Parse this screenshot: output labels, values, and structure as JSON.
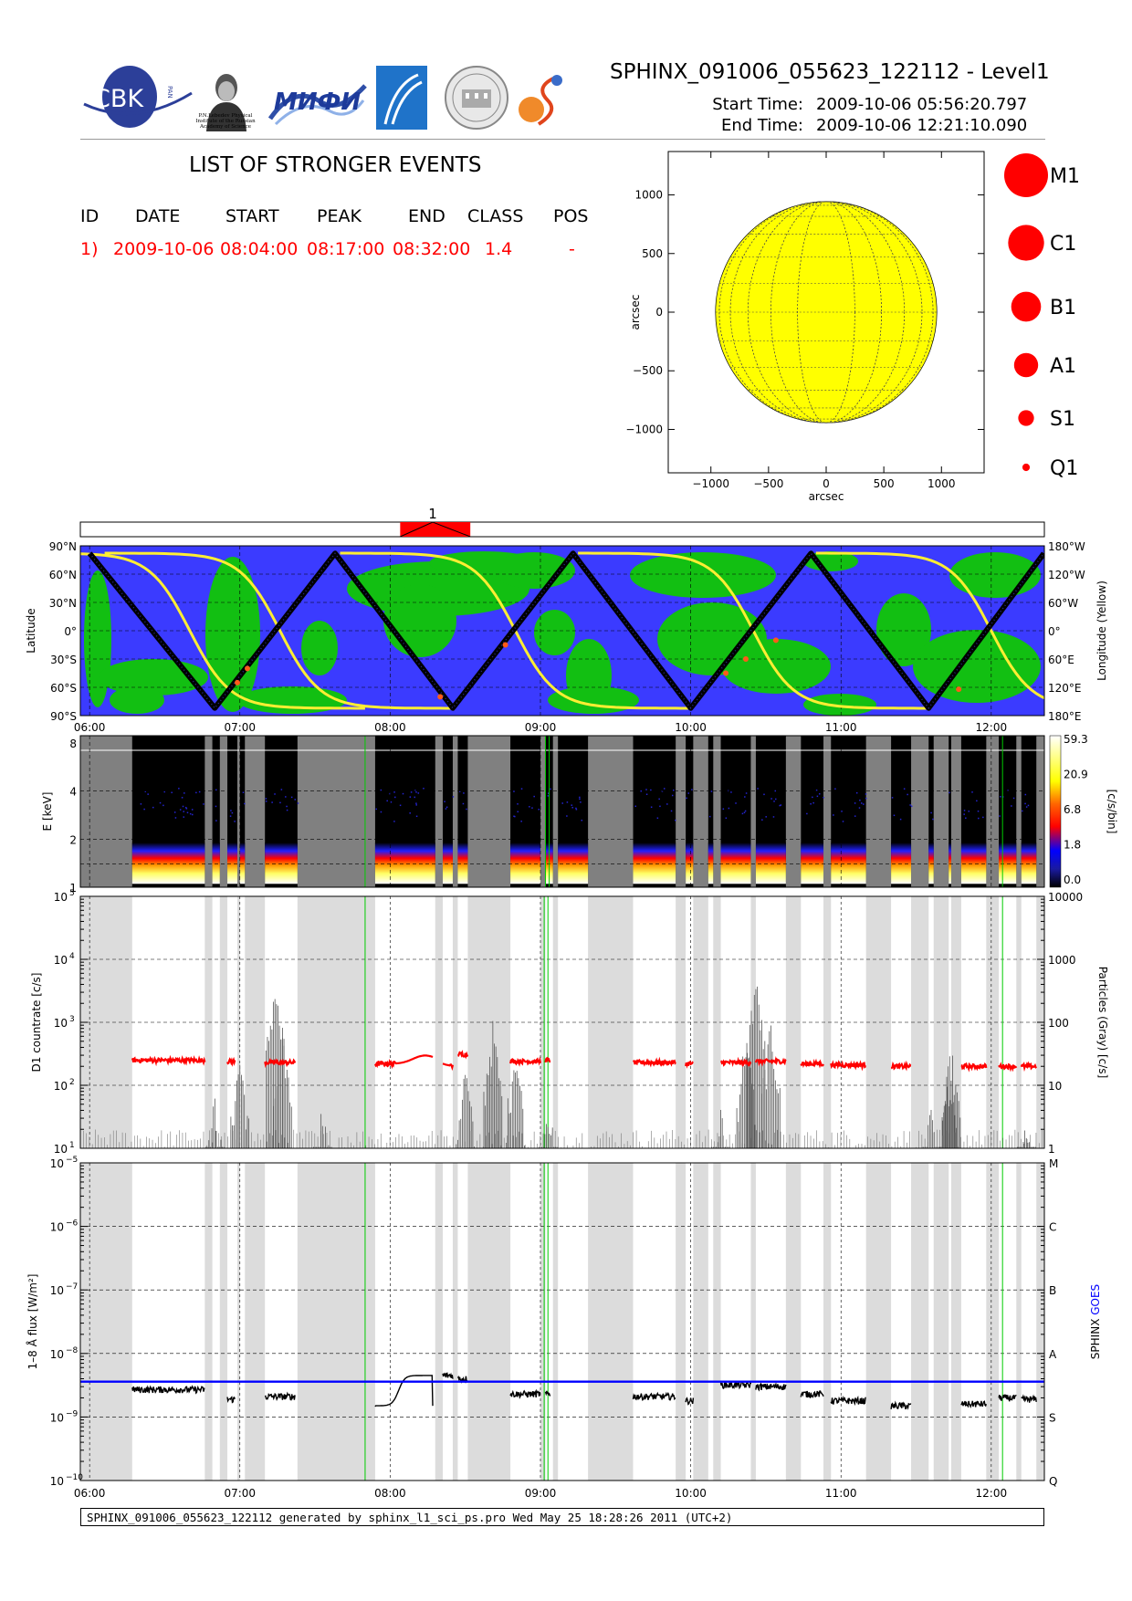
{
  "header": {
    "title": "SPHINX_091006_055623_122112 - Level1",
    "start_label": "Start Time:",
    "start_value": "2009-10-06   05:56:20.797",
    "end_label": "End Time:",
    "end_value": "2009-10-06   12:21:10.090"
  },
  "logos": {
    "cbk": "CBK",
    "cbk_small": "PAN",
    "lebedev": "P.N.Lebedev Physical Institute of the Russian Academy of Science",
    "mifi": "МИФИ"
  },
  "events": {
    "title": "LIST OF STRONGER EVENTS",
    "columns": [
      "ID",
      "DATE",
      "START",
      "PEAK",
      "END",
      "CLASS",
      "POS"
    ],
    "rows": [
      [
        "1)",
        "2009-10-06",
        "08:04:00",
        "08:17:00",
        "08:32:00",
        "1.4",
        "-"
      ]
    ],
    "marker_label": "1"
  },
  "colors": {
    "event_red": "#ff0000",
    "sun_yellow": "#ffff00",
    "map_blue": "#3b3bff",
    "map_green": "#12bf12",
    "track_yellow": "#ffee33",
    "goes_blue": "#0000ff",
    "gray_band": "#dcdcdc",
    "spectro_gray": "#808080"
  },
  "chart_data": [
    {
      "type": "scatter",
      "name": "solar-disk",
      "xlabel": "arcsec",
      "ylabel": "arcsec",
      "xlim": [
        -1370,
        1370
      ],
      "ylim": [
        -1370,
        1370
      ],
      "xticks": [
        "−1000",
        "−500",
        "0",
        "500",
        "1000"
      ],
      "xtick_values": [
        -1000,
        -500,
        0,
        500,
        1000
      ],
      "yticks": [
        "−1000",
        "−500",
        "0",
        "500",
        "1000"
      ],
      "ytick_values": [
        -1000,
        -500,
        0,
        500,
        1000
      ],
      "disk_radius": 960,
      "legend": [
        "M1",
        "C1",
        "B1",
        "A1",
        "S1",
        "Q1"
      ],
      "legend_sizes": [
        1.0,
        0.82,
        0.68,
        0.55,
        0.36,
        0.17
      ]
    },
    {
      "type": "line",
      "name": "orbit-map",
      "time_range": [
        "05:56",
        "12:21"
      ],
      "xticks": [
        "06:00",
        "07:00",
        "08:00",
        "09:00",
        "10:00",
        "11:00",
        "12:00"
      ],
      "left_ticks": [
        "90°N",
        "60°N",
        "30°N",
        "0°",
        "30°S",
        "60°S",
        "90°S"
      ],
      "right_ticks": [
        "180°W",
        "120°W",
        "60°W",
        "0°",
        "60°E",
        "120°E",
        "180°E"
      ],
      "ylabel_left": "Latitude",
      "ylabel_right": "Longitude (Yellow)",
      "latitude_track_peaks": [
        "06:00",
        "07:38",
        "09:13",
        "10:48",
        "12:21"
      ],
      "latitude_track_troughs": [
        "06:50",
        "08:25",
        "10:00",
        "11:35"
      ]
    },
    {
      "type": "heatmap",
      "name": "spectrogram",
      "ylabel": "E [keV]",
      "yticks": [
        "1",
        "2",
        "4",
        "8"
      ],
      "colorbar_label": "[c/s/bin]",
      "colorbar_ticks": [
        "59.3",
        "20.9",
        "6.8",
        "1.8",
        "0.0"
      ]
    },
    {
      "type": "line",
      "name": "d1-countrate",
      "ylabel": "D1 countrate [c/s]",
      "ylabel_right": "Particles (Gray) [c/s]",
      "yscale": "log",
      "ylim": [
        10,
        100000
      ],
      "yticks": [
        "10",
        "10",
        "10",
        "10",
        "10"
      ],
      "ytick_exps": [
        "1",
        "2",
        "3",
        "4",
        "5"
      ],
      "right_ticks": [
        "1",
        "10",
        "100",
        "1000",
        "10000"
      ],
      "countrate_level": [
        250,
        240,
        230,
        220,
        200,
        310,
        240,
        250,
        230,
        220,
        230,
        240,
        220,
        210,
        200,
        200
      ]
    },
    {
      "type": "line",
      "name": "flux",
      "ylabel": "1–8 Å flux [W/m²]",
      "ylabel_right": "SPHINX GOES",
      "yscale": "log",
      "ylim": [
        1e-10,
        1e-05
      ],
      "ytick_exps": [
        "−10",
        "−9",
        "−8",
        "−7",
        "−6",
        "−5"
      ],
      "right_ticks": [
        "Q",
        "S",
        "A",
        "B",
        "C",
        "M"
      ],
      "goes_level": 3.6e-09,
      "xticks": [
        "06:00",
        "07:00",
        "08:00",
        "09:00",
        "10:00",
        "11:00",
        "12:00"
      ]
    }
  ],
  "footer": "SPHINX_091006_055623_122112 generated by sphinx_l1_sci_ps.pro Wed May 25 18:28:26 2011 (UTC+2)"
}
